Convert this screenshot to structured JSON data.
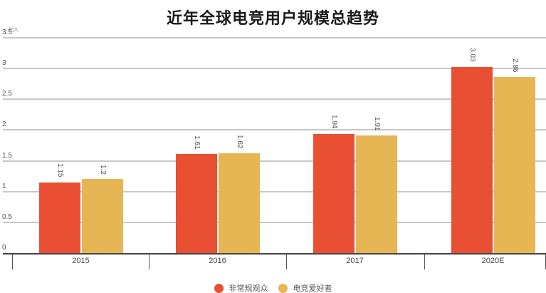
{
  "chart_data": {
    "type": "bar",
    "title": "近年全球电竞用户规模总趋势",
    "ylabel": "亿人",
    "xlabel": "",
    "ylim": [
      0,
      3.5
    ],
    "yticks": [
      "0",
      "0.5",
      "1",
      "1.5",
      "2",
      "2.5",
      "3",
      "3.5"
    ],
    "categories": [
      "2015",
      "2016",
      "2017",
      "2020E"
    ],
    "series": [
      {
        "name": "非常规观众",
        "color": "#e84f33",
        "values": [
          1.15,
          1.61,
          1.94,
          3.03
        ],
        "labels": [
          "1.15",
          "1.61",
          "1.94",
          "3.03"
        ]
      },
      {
        "name": "电竞爱好者",
        "color": "#e6b655",
        "values": [
          1.2,
          1.62,
          1.91,
          2.86
        ],
        "labels": [
          "1.2",
          "1.62",
          "1.91",
          "2.86"
        ]
      }
    ],
    "grid": true,
    "legend_position": "bottom"
  }
}
